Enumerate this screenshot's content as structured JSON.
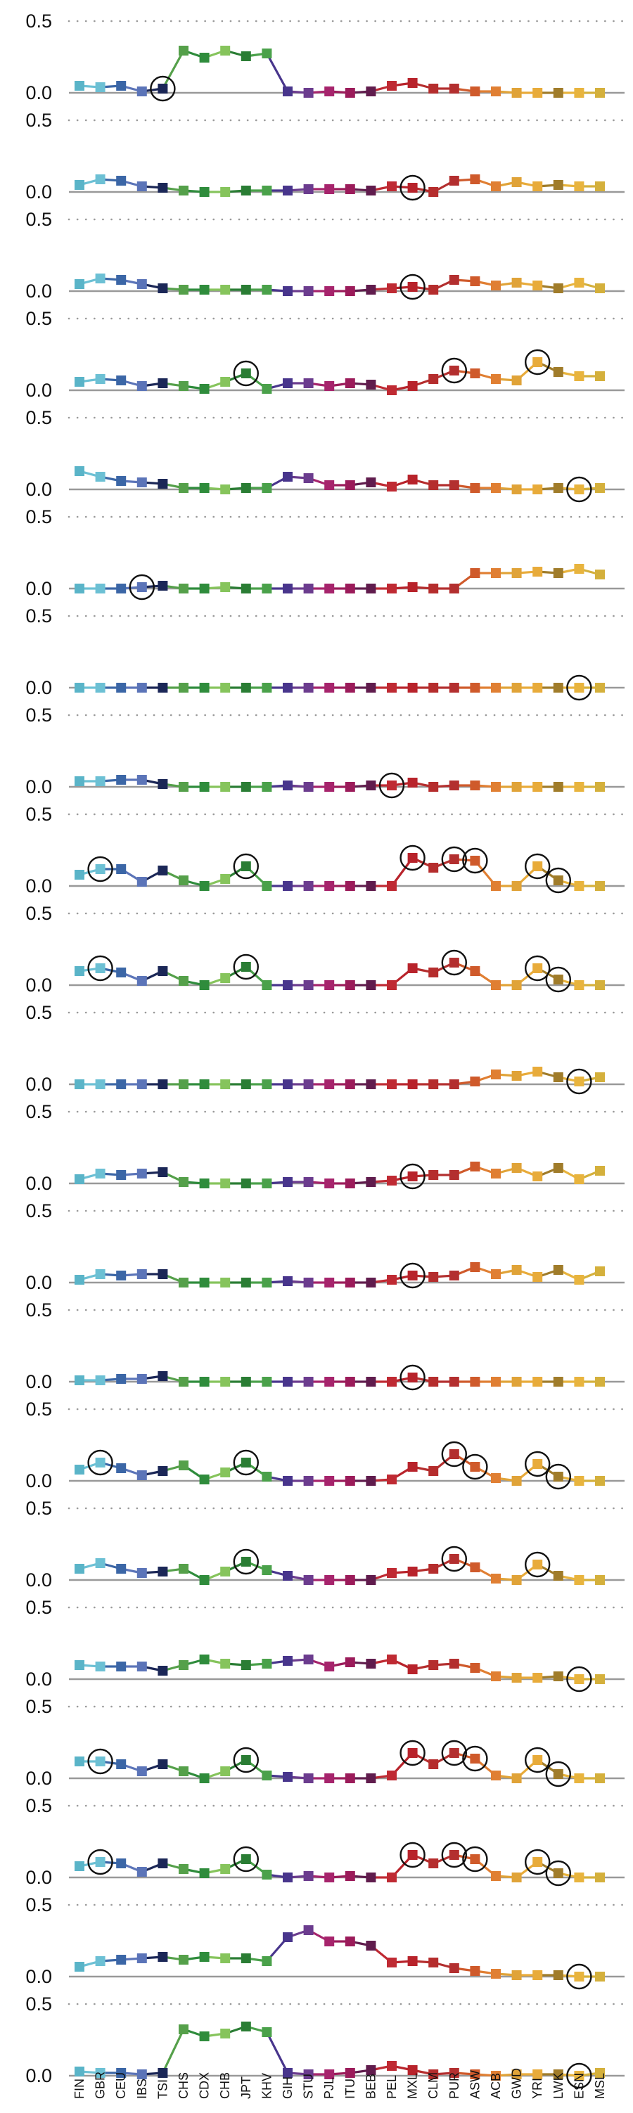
{
  "chart_data": {
    "type": "line",
    "marker": "square",
    "y_tick_labels": [
      "0.0",
      "0.5"
    ],
    "ylim": [
      0,
      0.5
    ],
    "categories": [
      "FIN",
      "GBR",
      "CEU",
      "IBS",
      "TSI",
      "CHS",
      "CDX",
      "CHB",
      "JPT",
      "KHV",
      "GIH",
      "STU",
      "PJL",
      "ITU",
      "BEB",
      "PEL",
      "MXL",
      "CLM",
      "PUR",
      "ASW",
      "ACB",
      "GWD",
      "YRI",
      "LWK",
      "ESN",
      "MSL"
    ],
    "category_colors": [
      "#5ab4c8",
      "#6cc0d4",
      "#3b66a6",
      "#5b74b8",
      "#1b2757",
      "#55a04a",
      "#2f8c3c",
      "#86c45c",
      "#2a7d34",
      "#4aa14a",
      "#48358c",
      "#6b3c8e",
      "#a6246c",
      "#9b1b5a",
      "#601c4d",
      "#bf2a33",
      "#b8232b",
      "#b52d2d",
      "#b32f2f",
      "#cf5a2b",
      "#e07f33",
      "#e0a338",
      "#e8ab3a",
      "#a07c2a",
      "#e8b43e",
      "#d4b03c"
    ],
    "colors": {
      "axis_baseline": "#999999",
      "gridline": "#999999",
      "circle_outline": "#111111",
      "tick_text": "#111111"
    },
    "panels": [
      {
        "values": [
          0.05,
          0.04,
          0.05,
          0.01,
          0.03,
          0.3,
          0.25,
          0.3,
          0.26,
          0.28,
          0.01,
          0.0,
          0.01,
          0.0,
          0.01,
          0.05,
          0.07,
          0.03,
          0.03,
          0.01,
          0.01,
          0.0,
          0.0,
          0.0,
          0.0,
          0.0
        ],
        "circled": [
          "TSI"
        ]
      },
      {
        "values": [
          0.05,
          0.09,
          0.08,
          0.04,
          0.03,
          0.01,
          0.0,
          0.0,
          0.01,
          0.01,
          0.01,
          0.02,
          0.02,
          0.02,
          0.01,
          0.04,
          0.03,
          0.0,
          0.08,
          0.09,
          0.04,
          0.07,
          0.04,
          0.05,
          0.04,
          0.04
        ],
        "circled": [
          "MXL"
        ]
      },
      {
        "values": [
          0.05,
          0.09,
          0.08,
          0.05,
          0.02,
          0.01,
          0.01,
          0.01,
          0.01,
          0.01,
          0.0,
          0.0,
          0.0,
          0.0,
          0.01,
          0.02,
          0.03,
          0.01,
          0.08,
          0.07,
          0.04,
          0.06,
          0.04,
          0.02,
          0.06,
          0.02
        ],
        "circled": [
          "MXL"
        ]
      },
      {
        "values": [
          0.06,
          0.08,
          0.07,
          0.03,
          0.05,
          0.03,
          0.01,
          0.06,
          0.12,
          0.01,
          0.05,
          0.05,
          0.03,
          0.05,
          0.04,
          0.0,
          0.03,
          0.08,
          0.14,
          0.12,
          0.08,
          0.07,
          0.2,
          0.13,
          0.1,
          0.1
        ],
        "circled": [
          "JPT",
          "PUR",
          "YRI"
        ]
      },
      {
        "values": [
          0.13,
          0.09,
          0.06,
          0.05,
          0.04,
          0.01,
          0.01,
          0.0,
          0.01,
          0.01,
          0.09,
          0.08,
          0.03,
          0.03,
          0.05,
          0.02,
          0.07,
          0.03,
          0.03,
          0.01,
          0.01,
          0.0,
          0.0,
          0.01,
          0.0,
          0.01
        ],
        "circled": [
          "ESN"
        ]
      },
      {
        "values": [
          0.0,
          0.0,
          0.0,
          0.01,
          0.02,
          0.0,
          0.0,
          0.01,
          0.0,
          0.0,
          0.0,
          0.0,
          0.0,
          0.0,
          0.0,
          0.0,
          0.01,
          0.0,
          0.0,
          0.11,
          0.11,
          0.11,
          0.12,
          0.11,
          0.14,
          0.1
        ],
        "circled": [
          "IBS"
        ]
      },
      {
        "values": [
          0.0,
          0.0,
          0.0,
          0.0,
          0.0,
          0.0,
          0.0,
          0.0,
          0.0,
          0.0,
          0.0,
          0.0,
          0.0,
          0.0,
          0.0,
          0.0,
          0.0,
          0.0,
          0.0,
          0.0,
          0.0,
          0.0,
          0.0,
          0.0,
          0.0,
          0.0
        ],
        "circled": [
          "ESN"
        ]
      },
      {
        "values": [
          0.04,
          0.04,
          0.05,
          0.05,
          0.02,
          0.0,
          0.0,
          0.0,
          0.0,
          0.0,
          0.01,
          0.0,
          0.0,
          0.0,
          0.01,
          0.01,
          0.03,
          0.0,
          0.01,
          0.01,
          0.0,
          0.0,
          0.0,
          0.0,
          0.0,
          0.0
        ],
        "circled": [
          "PEL"
        ]
      },
      {
        "values": [
          0.08,
          0.12,
          0.12,
          0.03,
          0.11,
          0.04,
          0.0,
          0.05,
          0.14,
          0.0,
          0.0,
          0.0,
          0.0,
          0.0,
          0.0,
          0.0,
          0.2,
          0.13,
          0.19,
          0.18,
          0.0,
          0.0,
          0.14,
          0.04,
          0.0,
          0.0
        ],
        "circled": [
          "GBR",
          "JPT",
          "MXL",
          "PUR",
          "ASW",
          "YRI",
          "LWK"
        ]
      },
      {
        "values": [
          0.1,
          0.12,
          0.09,
          0.03,
          0.1,
          0.03,
          0.0,
          0.05,
          0.13,
          0.0,
          0.0,
          0.0,
          0.0,
          0.0,
          0.0,
          0.0,
          0.12,
          0.09,
          0.16,
          0.1,
          0.0,
          0.0,
          0.12,
          0.04,
          0.0,
          0.0
        ],
        "circled": [
          "GBR",
          "JPT",
          "PUR",
          "YRI",
          "LWK"
        ]
      },
      {
        "values": [
          0.0,
          0.0,
          0.0,
          0.0,
          0.0,
          0.0,
          0.0,
          0.0,
          0.0,
          0.0,
          0.0,
          0.0,
          0.0,
          0.0,
          0.0,
          0.0,
          0.0,
          0.0,
          0.0,
          0.02,
          0.07,
          0.06,
          0.09,
          0.05,
          0.02,
          0.05
        ],
        "circled": [
          "ESN"
        ]
      },
      {
        "values": [
          0.03,
          0.07,
          0.06,
          0.07,
          0.08,
          0.01,
          0.0,
          0.0,
          0.0,
          0.0,
          0.01,
          0.01,
          0.0,
          0.0,
          0.01,
          0.02,
          0.05,
          0.06,
          0.06,
          0.12,
          0.07,
          0.11,
          0.05,
          0.11,
          0.03,
          0.09
        ],
        "circled": [
          "MXL"
        ]
      },
      {
        "values": [
          0.02,
          0.06,
          0.05,
          0.06,
          0.06,
          0.0,
          0.0,
          0.0,
          0.0,
          0.0,
          0.01,
          0.0,
          0.0,
          0.0,
          0.0,
          0.02,
          0.05,
          0.04,
          0.05,
          0.11,
          0.06,
          0.09,
          0.04,
          0.09,
          0.02,
          0.08
        ],
        "circled": [
          "MXL"
        ]
      },
      {
        "values": [
          0.01,
          0.01,
          0.02,
          0.02,
          0.04,
          0.0,
          0.0,
          0.0,
          0.0,
          0.0,
          0.0,
          0.0,
          0.0,
          0.0,
          0.0,
          0.0,
          0.03,
          0.0,
          0.0,
          0.0,
          0.0,
          0.0,
          0.0,
          0.0,
          0.0,
          0.0
        ],
        "circled": [
          "MXL"
        ]
      },
      {
        "values": [
          0.08,
          0.13,
          0.09,
          0.04,
          0.07,
          0.11,
          0.01,
          0.06,
          0.13,
          0.03,
          0.0,
          0.0,
          0.0,
          0.0,
          0.0,
          0.01,
          0.1,
          0.07,
          0.19,
          0.1,
          0.02,
          0.0,
          0.12,
          0.03,
          0.0,
          0.0
        ],
        "circled": [
          "GBR",
          "JPT",
          "PUR",
          "ASW",
          "YRI",
          "LWK"
        ]
      },
      {
        "values": [
          0.08,
          0.12,
          0.08,
          0.05,
          0.06,
          0.08,
          0.0,
          0.06,
          0.13,
          0.07,
          0.03,
          0.0,
          0.0,
          0.0,
          0.0,
          0.05,
          0.06,
          0.08,
          0.15,
          0.09,
          0.01,
          0.0,
          0.11,
          0.03,
          0.0,
          0.0
        ],
        "circled": [
          "JPT",
          "PUR",
          "YRI"
        ]
      },
      {
        "values": [
          0.1,
          0.09,
          0.09,
          0.09,
          0.06,
          0.1,
          0.14,
          0.11,
          0.1,
          0.11,
          0.13,
          0.14,
          0.09,
          0.12,
          0.11,
          0.14,
          0.07,
          0.1,
          0.11,
          0.08,
          0.02,
          0.01,
          0.01,
          0.02,
          0.0,
          0.0
        ],
        "circled": [
          "ESN"
        ]
      },
      {
        "values": [
          0.12,
          0.12,
          0.1,
          0.05,
          0.1,
          0.05,
          0.0,
          0.05,
          0.13,
          0.02,
          0.01,
          0.0,
          0.0,
          0.0,
          0.0,
          0.02,
          0.18,
          0.1,
          0.18,
          0.14,
          0.02,
          0.0,
          0.13,
          0.03,
          0.0,
          0.0
        ],
        "circled": [
          "GBR",
          "JPT",
          "MXL",
          "PUR",
          "ASW",
          "YRI",
          "LWK"
        ]
      },
      {
        "values": [
          0.08,
          0.11,
          0.1,
          0.04,
          0.1,
          0.06,
          0.03,
          0.06,
          0.13,
          0.02,
          0.0,
          0.01,
          0.0,
          0.01,
          0.0,
          0.0,
          0.16,
          0.1,
          0.16,
          0.13,
          0.01,
          0.0,
          0.11,
          0.03,
          0.0,
          0.0
        ],
        "circled": [
          "GBR",
          "JPT",
          "MXL",
          "PUR",
          "ASW",
          "YRI",
          "LWK"
        ]
      },
      {
        "values": [
          0.07,
          0.11,
          0.12,
          0.13,
          0.14,
          0.12,
          0.14,
          0.13,
          0.13,
          0.11,
          0.28,
          0.33,
          0.25,
          0.25,
          0.22,
          0.1,
          0.11,
          0.1,
          0.06,
          0.04,
          0.02,
          0.01,
          0.01,
          0.01,
          0.0,
          0.0
        ],
        "circled": [
          "ESN"
        ]
      },
      {
        "values": [
          0.03,
          0.02,
          0.02,
          0.01,
          0.02,
          0.33,
          0.28,
          0.3,
          0.35,
          0.31,
          0.02,
          0.01,
          0.01,
          0.02,
          0.04,
          0.07,
          0.04,
          0.01,
          0.02,
          0.01,
          0.0,
          0.01,
          0.01,
          0.01,
          0.0,
          0.02
        ],
        "circled": [
          "ESN"
        ]
      }
    ]
  }
}
